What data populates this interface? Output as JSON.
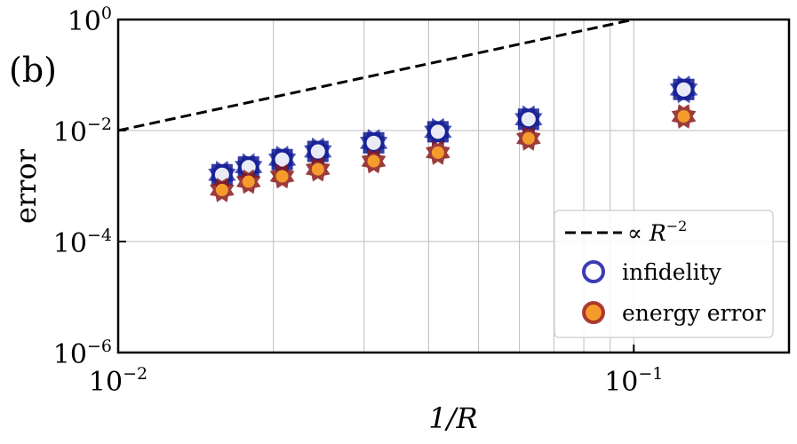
{
  "panel_label": "(b)",
  "chart_data": {
    "type": "scatter",
    "title": "",
    "xlabel": "1/R",
    "ylabel": "error",
    "x_scale": "log",
    "y_scale": "log",
    "xlim": [
      0.01,
      0.2
    ],
    "ylim": [
      1e-06,
      1
    ],
    "x_ticks": [
      {
        "value": 0.01,
        "base": "10",
        "exp": "−2"
      },
      {
        "value": 0.1,
        "base": "10",
        "exp": "−1"
      }
    ],
    "y_ticks": [
      {
        "value": 1,
        "base": "10",
        "exp": "0"
      },
      {
        "value": 0.01,
        "base": "10",
        "exp": "−2"
      },
      {
        "value": 0.0001,
        "base": "10",
        "exp": "−4"
      },
      {
        "value": 1e-06,
        "base": "10",
        "exp": "−6"
      }
    ],
    "grid": true,
    "legend_position": "lower-right",
    "reference_line": {
      "label_prefix": "∝ R",
      "label_exp": "−2",
      "style": "dashed",
      "color": "#000000",
      "x": [
        0.01,
        0.1
      ],
      "y": [
        0.01,
        1
      ]
    },
    "series": [
      {
        "name": "infidelity",
        "marker": "open-circle",
        "color": "#1a1aa6",
        "x": [
          0.0159,
          0.0179,
          0.0208,
          0.0244,
          0.0313,
          0.0417,
          0.0625,
          0.125
        ],
        "y": [
          0.0016,
          0.0022,
          0.003,
          0.0042,
          0.006,
          0.0095,
          0.016,
          0.055
        ]
      },
      {
        "name": "energy error",
        "marker": "filled-circle",
        "color": "#f59b2b",
        "edge_color": "#9c1f1f",
        "x": [
          0.0159,
          0.0179,
          0.0208,
          0.0244,
          0.0313,
          0.0417,
          0.0625,
          0.125
        ],
        "y": [
          0.00085,
          0.0012,
          0.0015,
          0.002,
          0.0028,
          0.004,
          0.0072,
          0.018
        ]
      }
    ]
  }
}
